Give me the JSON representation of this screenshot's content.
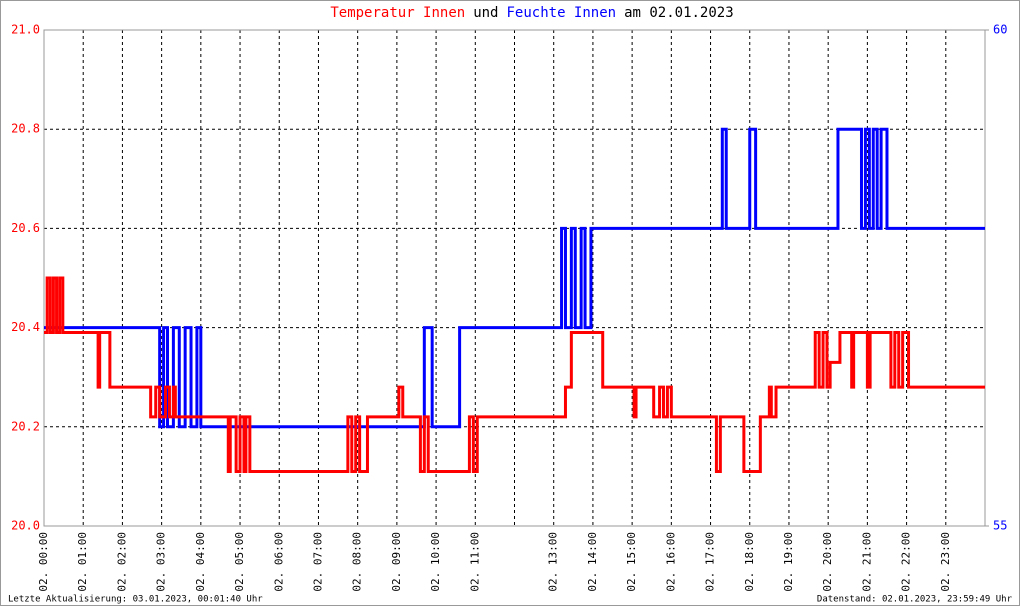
{
  "chart_data": {
    "type": "line",
    "title": [
      "Temperatur Innen",
      "und",
      "Feuchte Innen",
      "am 02.01.2023"
    ],
    "title_colors": [
      "#ff0000",
      "#000000",
      "#0000ff",
      "#000000"
    ],
    "xlim": [
      0,
      24
    ],
    "xticks": [
      {
        "value": 0,
        "label": "02. 00:00"
      },
      {
        "value": 1,
        "label": "02. 01:00"
      },
      {
        "value": 2,
        "label": "02. 02:00"
      },
      {
        "value": 3,
        "label": "02. 03:00"
      },
      {
        "value": 4,
        "label": "02. 04:00"
      },
      {
        "value": 5,
        "label": "02. 05:00"
      },
      {
        "value": 6,
        "label": "02. 06:00"
      },
      {
        "value": 7,
        "label": "02. 07:00"
      },
      {
        "value": 8,
        "label": "02. 08:00"
      },
      {
        "value": 9,
        "label": "02. 09:00"
      },
      {
        "value": 10,
        "label": "02. 10:00"
      },
      {
        "value": 11,
        "label": "02. 11:00"
      },
      {
        "value": 12,
        "label": null
      },
      {
        "value": 13,
        "label": "02. 13:00"
      },
      {
        "value": 14,
        "label": "02. 14:00"
      },
      {
        "value": 15,
        "label": "02. 15:00"
      },
      {
        "value": 16,
        "label": "02. 16:00"
      },
      {
        "value": 17,
        "label": "02. 17:00"
      },
      {
        "value": 18,
        "label": "02. 18:00"
      },
      {
        "value": 19,
        "label": "02. 19:00"
      },
      {
        "value": 20,
        "label": "02. 20:00"
      },
      {
        "value": 21,
        "label": "02. 21:00"
      },
      {
        "value": 22,
        "label": "02. 22:00"
      },
      {
        "value": 23,
        "label": "02. 23:00"
      }
    ],
    "ylim": [
      20,
      21
    ],
    "yticks": [
      {
        "value": 20,
        "label": "20.0"
      },
      20.2,
      20.4,
      20.6,
      20.8,
      {
        "value": 21,
        "label": "21.0"
      }
    ],
    "y2lim": [
      55,
      60
    ],
    "y2ticks": [
      55,
      60
    ],
    "ytick_color": "#ff0000",
    "y2tick_color": "#0000ff",
    "grid": true,
    "series": [
      {
        "name": "Feuchte Innen",
        "color": "#0000ff",
        "axis": "y2",
        "x": [
          0,
          2.95,
          2.95,
          3.05,
          3.05,
          3.15,
          3.15,
          3.3,
          3.3,
          3.45,
          3.45,
          3.6,
          3.6,
          3.75,
          3.75,
          3.9,
          3.9,
          4.0,
          4.0,
          9.7,
          9.7,
          9.9,
          9.9,
          10.6,
          10.6,
          13.2,
          13.2,
          13.3,
          13.3,
          13.45,
          13.45,
          13.55,
          13.55,
          13.7,
          13.7,
          13.8,
          13.8,
          13.95,
          13.95,
          17.3,
          17.3,
          17.4,
          17.4,
          18.0,
          18.0,
          18.15,
          18.15,
          20.25,
          20.25,
          20.85,
          20.85,
          20.95,
          20.95,
          21.05,
          21.05,
          21.15,
          21.15,
          21.25,
          21.25,
          21.35,
          21.35,
          21.5,
          21.5,
          24
        ],
        "values": [
          57,
          57,
          56,
          56,
          57,
          57,
          56,
          56,
          57,
          57,
          56,
          56,
          57,
          57,
          56,
          56,
          57,
          57,
          56,
          56,
          57,
          57,
          56,
          56,
          57,
          57,
          58,
          58,
          57,
          57,
          58,
          58,
          57,
          57,
          58,
          58,
          57,
          57,
          58,
          58,
          59,
          59,
          58,
          58,
          59,
          59,
          58,
          58,
          59,
          59,
          58,
          58,
          59,
          59,
          58,
          58,
          59,
          59,
          58,
          58,
          59,
          59,
          58,
          58
        ]
      },
      {
        "name": "Temperatur Innen",
        "color": "#ff0000",
        "axis": "y",
        "x": [
          0,
          0.08,
          0.08,
          0.16,
          0.16,
          0.24,
          0.24,
          0.32,
          0.32,
          0.4,
          0.4,
          0.48,
          0.48,
          1.38,
          1.38,
          1.42,
          1.42,
          1.68,
          1.68,
          2.72,
          2.72,
          2.85,
          2.85,
          2.95,
          2.95,
          3.1,
          3.1,
          3.2,
          3.2,
          3.3,
          3.3,
          3.35,
          3.35,
          4.7,
          4.7,
          4.75,
          4.75,
          4.9,
          4.9,
          5.0,
          5.0,
          5.1,
          5.1,
          5.15,
          5.15,
          5.25,
          5.25,
          7.75,
          7.75,
          7.85,
          7.85,
          7.95,
          7.95,
          8.05,
          8.05,
          8.25,
          8.25,
          9.05,
          9.05,
          9.15,
          9.15,
          9.6,
          9.6,
          9.7,
          9.7,
          9.8,
          9.8,
          10.85,
          10.85,
          10.95,
          10.95,
          11.05,
          11.05,
          13.3,
          13.3,
          13.45,
          13.45,
          14.25,
          14.25,
          15.05,
          15.05,
          15.1,
          15.1,
          15.55,
          15.55,
          15.7,
          15.7,
          15.8,
          15.8,
          15.9,
          15.9,
          16.0,
          16.0,
          17.15,
          17.15,
          17.25,
          17.25,
          17.85,
          17.85,
          18.27,
          18.27,
          18.5,
          18.5,
          18.55,
          18.55,
          18.67,
          18.67,
          19.67,
          19.67,
          19.77,
          19.77,
          19.87,
          19.87,
          19.97,
          19.97,
          20.05,
          20.05,
          20.3,
          20.3,
          20.6,
          20.6,
          20.65,
          20.65,
          21.0,
          21.0,
          21.07,
          21.07,
          21.6,
          21.6,
          21.7,
          21.7,
          21.8,
          21.8,
          21.9,
          21.9,
          22.05,
          22.05,
          24
        ],
        "values": [
          20.39,
          20.39,
          20.5,
          20.5,
          20.39,
          20.39,
          20.5,
          20.5,
          20.39,
          20.39,
          20.5,
          20.5,
          20.39,
          20.39,
          20.28,
          20.28,
          20.39,
          20.39,
          20.28,
          20.28,
          20.22,
          20.22,
          20.28,
          20.28,
          20.22,
          20.22,
          20.28,
          20.28,
          20.22,
          20.22,
          20.28,
          20.28,
          20.22,
          20.22,
          20.11,
          20.11,
          20.22,
          20.22,
          20.11,
          20.11,
          20.22,
          20.22,
          20.11,
          20.11,
          20.22,
          20.22,
          20.11,
          20.11,
          20.22,
          20.22,
          20.11,
          20.11,
          20.22,
          20.22,
          20.11,
          20.11,
          20.22,
          20.22,
          20.28,
          20.28,
          20.22,
          20.22,
          20.11,
          20.11,
          20.22,
          20.22,
          20.11,
          20.11,
          20.22,
          20.22,
          20.11,
          20.11,
          20.22,
          20.22,
          20.28,
          20.28,
          20.39,
          20.39,
          20.28,
          20.28,
          20.22,
          20.22,
          20.28,
          20.28,
          20.22,
          20.22,
          20.28,
          20.28,
          20.22,
          20.22,
          20.28,
          20.28,
          20.22,
          20.22,
          20.11,
          20.11,
          20.22,
          20.22,
          20.11,
          20.11,
          20.22,
          20.22,
          20.28,
          20.28,
          20.22,
          20.22,
          20.28,
          20.28,
          20.39,
          20.39,
          20.28,
          20.28,
          20.39,
          20.39,
          20.28,
          20.28,
          20.33,
          20.33,
          20.39,
          20.39,
          20.28,
          20.28,
          20.39,
          20.39,
          20.28,
          20.28,
          20.39,
          20.39,
          20.28,
          20.28,
          20.39,
          20.39,
          20.28,
          20.28,
          20.39,
          20.39,
          20.28,
          20.28
        ]
      }
    ],
    "footer_left": "Letzte Aktualisierung: 03.01.2023, 00:01:40 Uhr",
    "footer_right": "Datenstand: 02.01.2023, 23:59:49 Uhr"
  }
}
